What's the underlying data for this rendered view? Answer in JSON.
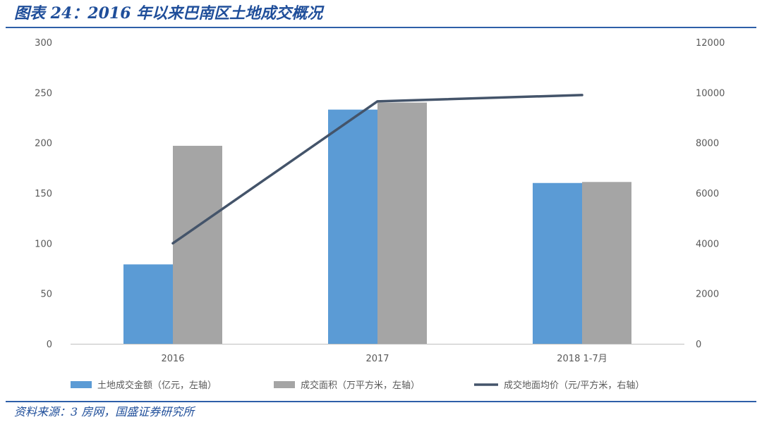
{
  "header": {
    "title": "图表 24：2016 年以来巴南区土地成交概况"
  },
  "footer": {
    "source": "资料来源：3 房网，国盛证券研究所"
  },
  "colors": {
    "accent": "#2e5fa8",
    "bar1": "#5b9bd5",
    "bar2": "#a5a5a5",
    "line": "#44546a"
  },
  "chart_data": {
    "type": "bar",
    "title": "",
    "categories": [
      "2016",
      "2017",
      "2018  1-7月"
    ],
    "series": [
      {
        "name": "土地成交金额（亿元，左轴）",
        "kind": "bar",
        "axis": "left",
        "values": [
          79,
          233,
          160
        ]
      },
      {
        "name": "成交面积（万平方米，左轴）",
        "kind": "bar",
        "axis": "left",
        "values": [
          197,
          240,
          161
        ]
      },
      {
        "name": "成交地面均价（元/平方米，右轴）",
        "kind": "line",
        "axis": "right",
        "values": [
          4000,
          9650,
          9900
        ]
      }
    ],
    "y_left": {
      "lim": [
        0,
        300
      ],
      "ticks": [
        "0",
        "50",
        "100",
        "150",
        "200",
        "250",
        "300"
      ]
    },
    "y_right": {
      "lim": [
        0,
        12000
      ],
      "ticks": [
        "0",
        "2000",
        "4000",
        "6000",
        "8000",
        "10000",
        "12000"
      ]
    },
    "grid": false,
    "legend": "bottom"
  }
}
